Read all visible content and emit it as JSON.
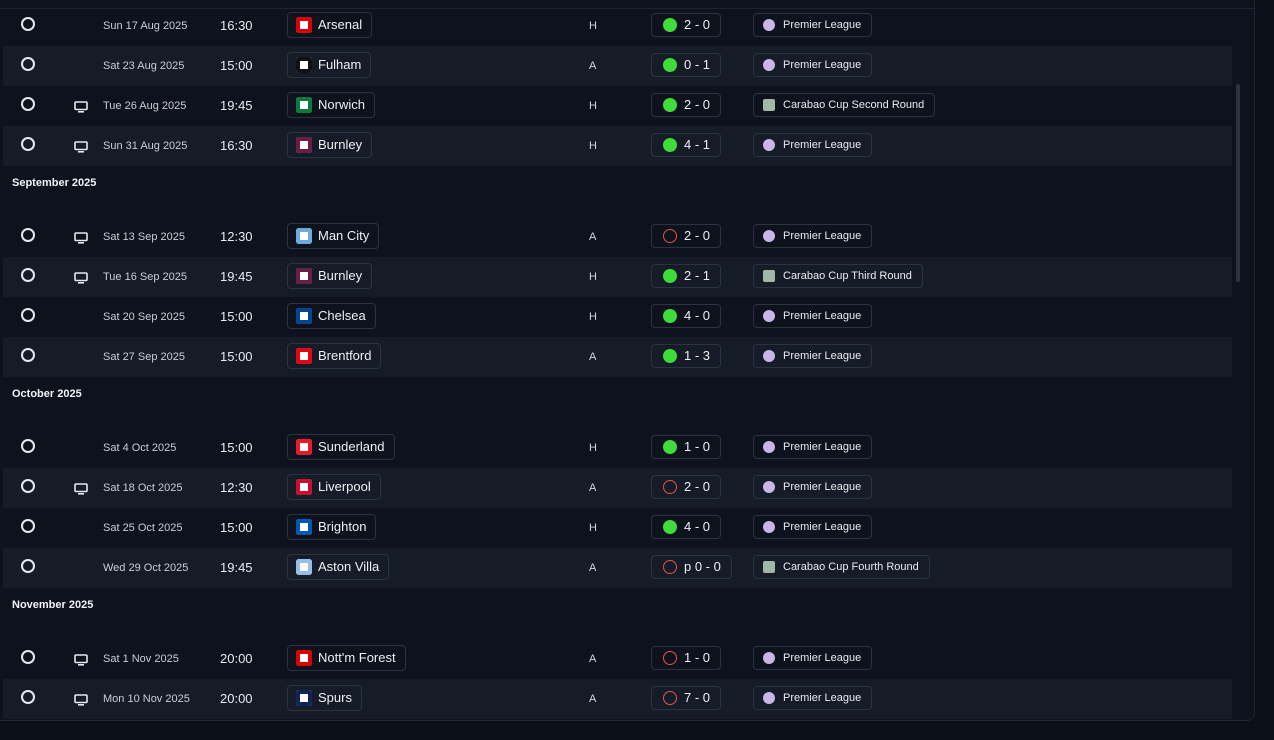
{
  "groups": [
    {
      "month": "",
      "fixtures": [
        {
          "tv": false,
          "date": "Sun 17 Aug 2025",
          "time": "16:30",
          "opponent": "Arsenal",
          "crest_color": "#db0007",
          "venue": "H",
          "outcome": "win",
          "score": "2 - 0",
          "competition": "Premier League",
          "comp_type": "league"
        },
        {
          "tv": false,
          "date": "Sat 23 Aug 2025",
          "time": "15:00",
          "opponent": "Fulham",
          "crest_color": "#111111",
          "venue": "A",
          "outcome": "win",
          "score": "0 - 1",
          "competition": "Premier League",
          "comp_type": "league"
        },
        {
          "tv": true,
          "date": "Tue 26 Aug 2025",
          "time": "19:45",
          "opponent": "Norwich",
          "crest_color": "#0b7a3e",
          "venue": "H",
          "outcome": "win",
          "score": "2 - 0",
          "competition": "Carabao Cup Second Round",
          "comp_type": "cup"
        },
        {
          "tv": true,
          "date": "Sun 31 Aug 2025",
          "time": "16:30",
          "opponent": "Burnley",
          "crest_color": "#6c1d45",
          "venue": "H",
          "outcome": "win",
          "score": "4 - 1",
          "competition": "Premier League",
          "comp_type": "league"
        }
      ]
    },
    {
      "month": "September 2025",
      "fixtures": [
        {
          "tv": true,
          "date": "Sat 13 Sep 2025",
          "time": "12:30",
          "opponent": "Man City",
          "crest_color": "#6cabdd",
          "venue": "A",
          "outcome": "loss",
          "score": "2 - 0",
          "competition": "Premier League",
          "comp_type": "league"
        },
        {
          "tv": true,
          "date": "Tue 16 Sep 2025",
          "time": "19:45",
          "opponent": "Burnley",
          "crest_color": "#6c1d45",
          "venue": "H",
          "outcome": "win",
          "score": "2 - 1",
          "competition": "Carabao Cup Third Round",
          "comp_type": "cup"
        },
        {
          "tv": false,
          "date": "Sat 20 Sep 2025",
          "time": "15:00",
          "opponent": "Chelsea",
          "crest_color": "#034694",
          "venue": "H",
          "outcome": "win",
          "score": "4 - 0",
          "competition": "Premier League",
          "comp_type": "league"
        },
        {
          "tv": false,
          "date": "Sat 27 Sep 2025",
          "time": "15:00",
          "opponent": "Brentford",
          "crest_color": "#e30613",
          "venue": "A",
          "outcome": "win",
          "score": "1 - 3",
          "competition": "Premier League",
          "comp_type": "league"
        }
      ]
    },
    {
      "month": "October 2025",
      "fixtures": [
        {
          "tv": false,
          "date": "Sat 4 Oct 2025",
          "time": "15:00",
          "opponent": "Sunderland",
          "crest_color": "#eb172b",
          "venue": "H",
          "outcome": "win",
          "score": "1 - 0",
          "competition": "Premier League",
          "comp_type": "league"
        },
        {
          "tv": true,
          "date": "Sat 18 Oct 2025",
          "time": "12:30",
          "opponent": "Liverpool",
          "crest_color": "#c8102e",
          "venue": "A",
          "outcome": "loss",
          "score": "2 - 0",
          "competition": "Premier League",
          "comp_type": "league"
        },
        {
          "tv": false,
          "date": "Sat 25 Oct 2025",
          "time": "15:00",
          "opponent": "Brighton",
          "crest_color": "#0057b8",
          "venue": "H",
          "outcome": "win",
          "score": "4 - 0",
          "competition": "Premier League",
          "comp_type": "league"
        },
        {
          "tv": false,
          "date": "Wed 29 Oct 2025",
          "time": "19:45",
          "opponent": "Aston Villa",
          "crest_color": "#95bfe5",
          "venue": "A",
          "outcome": "loss",
          "score": "p 0 - 0",
          "competition": "Carabao Cup Fourth Round",
          "comp_type": "cup"
        }
      ]
    },
    {
      "month": "November 2025",
      "fixtures": [
        {
          "tv": true,
          "date": "Sat 1 Nov 2025",
          "time": "20:00",
          "opponent": "Nott'm Forest",
          "crest_color": "#dd0000",
          "venue": "A",
          "outcome": "loss",
          "score": "1 - 0",
          "competition": "Premier League",
          "comp_type": "league"
        },
        {
          "tv": true,
          "date": "Mon 10 Nov 2025",
          "time": "20:00",
          "opponent": "Spurs",
          "crest_color": "#132257",
          "venue": "A",
          "outcome": "loss",
          "score": "7 - 0",
          "competition": "Premier League",
          "comp_type": "league"
        }
      ]
    }
  ]
}
